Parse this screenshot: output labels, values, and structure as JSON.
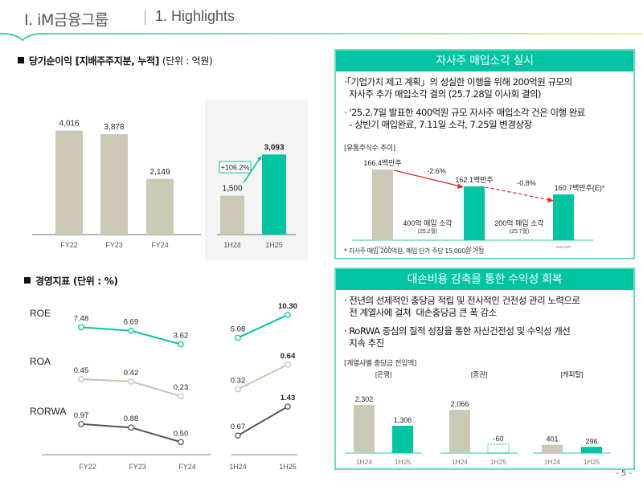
{
  "header": {
    "section": "Ⅰ. iM금융그룹",
    "subsection": "1. Highlights"
  },
  "net_income": {
    "title": "당기순이익 [지배주주지분, 누적]",
    "unit": "(단위 : 억원)",
    "growth_label": "+106.2%"
  },
  "metrics": {
    "title": "경영지표",
    "unit": "(단위 : %)",
    "labels": [
      "ROE",
      "ROA",
      "RORWA"
    ]
  },
  "buyback": {
    "title": "자사주 매입소각 실시",
    "bullets": [
      [
        "·「기업가치 제고 계획」의 성실한 이행을 위해  200억원 규모의",
        "  자사주 추가 매입소각 결의 (25.7.28일 이사회 결의)"
      ],
      [
        "· '25.2.7일 발표한 400억원 규모 자사주 매입소각 건은 이행 완료",
        "  - 상반기 매입완료, 7.11일 소각, 7.25일 변경상장"
      ]
    ],
    "chart_caption": "[유통주식수 추이]",
    "change_labels": [
      "-2.6%",
      "-0.8%"
    ],
    "annotations": [
      {
        "main": "400억 매입 소각",
        "sub": "(25.2월)"
      },
      {
        "main": "200억 매입 소각",
        "sub": "(25.7월)"
      }
    ],
    "footnote": "* 자사주 매입 200억원, 매입 단가 주당 15,000원 가정"
  },
  "provision": {
    "title": "대손비용 감축을 통한 수익성 회복",
    "bullets": [
      [
        "· 전년의 선제적인 충당금 적립 및 전사적인 건전성 관리 노력으로",
        "  전 계열사에 걸쳐  대손충당금 큰 폭 감소"
      ],
      [
        "· RoRWA 중심의 질적 성장을 통한 자산건전성 및 수익성 개선",
        "  지속 추진"
      ]
    ],
    "chart_caption": "[계열사별 충당금 전입액]"
  },
  "page_number": "- 5 -",
  "colors": {
    "teal": "#00c4a2",
    "beige": "#ccc8b6",
    "dark_line": "#555555",
    "box_border": "#6ddcc5",
    "red_arrow": "#e8262a"
  },
  "chart_data": [
    {
      "type": "bar",
      "title": "당기순이익 [지배주주지분, 누적] (단위 : 억원) - 연간",
      "categories": [
        "FY22",
        "FY23",
        "FY24"
      ],
      "values": [
        4016,
        3878,
        2149
      ],
      "value_labels": [
        "4,016",
        "3,878",
        "2,149"
      ],
      "ylim": [
        0,
        4500
      ]
    },
    {
      "type": "bar",
      "title": "당기순이익 [지배주주지분, 누적] (단위 : 억원) - 반기",
      "categories": [
        "1H24",
        "1H25"
      ],
      "values": [
        1500,
        3093
      ],
      "value_labels": [
        "1,500",
        "3,093"
      ],
      "annotation": "+106.2%",
      "ylim": [
        0,
        4500
      ]
    },
    {
      "type": "line",
      "title": "경영지표 (단위 : %)",
      "categories_annual": [
        "FY22",
        "FY23",
        "FY24"
      ],
      "categories_half": [
        "1H24",
        "1H25"
      ],
      "series": [
        {
          "name": "ROE",
          "annual": [
            7.48,
            6.69,
            3.62
          ],
          "half": [
            5.08,
            10.3
          ],
          "labels_annual": [
            "7.48",
            "6.69",
            "3.62"
          ],
          "labels_half": [
            "5.08",
            "10.30"
          ]
        },
        {
          "name": "ROA",
          "annual": [
            0.45,
            0.42,
            0.23
          ],
          "half": [
            0.32,
            0.64
          ],
          "labels_annual": [
            "0.45",
            "0.42",
            "0.23"
          ],
          "labels_half": [
            "0.32",
            "0.64"
          ]
        },
        {
          "name": "RORWA",
          "annual": [
            0.97,
            0.88,
            0.5
          ],
          "half": [
            0.67,
            1.43
          ],
          "labels_annual": [
            "0.97",
            "0.88",
            "0.50"
          ],
          "labels_half": [
            "0.67",
            "1.43"
          ]
        }
      ]
    },
    {
      "type": "bar",
      "title": "유통주식수 추이",
      "categories": [
        "2024",
        "1H25",
        "2025"
      ],
      "values": [
        166.4,
        162.1,
        160.7
      ],
      "value_labels": [
        "166.4백만주",
        "162.1백만주",
        "160.7백만주(E)*"
      ],
      "unit": "백만주",
      "changes": [
        "-2.6%",
        "-0.8%"
      ]
    },
    {
      "type": "bar",
      "title": "계열사별 충당금 전입액",
      "groups": [
        {
          "name": "[은행]",
          "categories": [
            "1H24",
            "1H25"
          ],
          "values": [
            2302,
            1306
          ],
          "value_labels": [
            "2,302",
            "1,306"
          ]
        },
        {
          "name": "[증권]",
          "categories": [
            "1H24",
            "1H25"
          ],
          "values": [
            2066,
            -60
          ],
          "value_labels": [
            "2,066",
            "-60"
          ]
        },
        {
          "name": "[캐피탈]",
          "categories": [
            "1H24",
            "1H25"
          ],
          "values": [
            401,
            296
          ],
          "value_labels": [
            "401",
            "296"
          ]
        }
      ]
    }
  ]
}
